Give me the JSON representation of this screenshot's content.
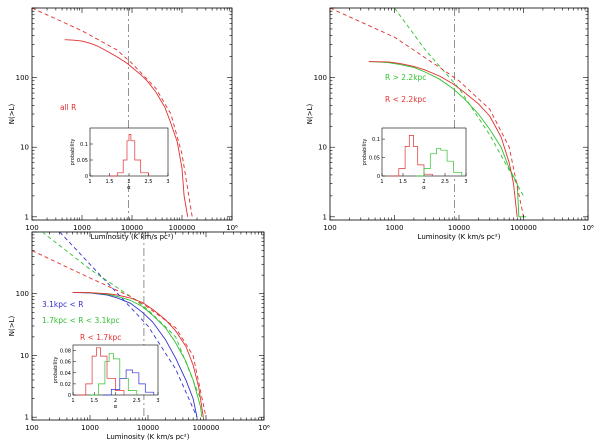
{
  "chart_data": [
    {
      "type": "line",
      "panel": "top-left",
      "xlabel": "Luminosity (K km/s pc²)",
      "ylabel": "N(>L)",
      "xscale": "log",
      "yscale": "log",
      "xlim": [
        100,
        1000000
      ],
      "ylim": [
        0.9,
        1000
      ],
      "xticks": [
        "100",
        "1000",
        "10000",
        "100000",
        "10⁶"
      ],
      "yticks": [
        "1",
        "10",
        "100"
      ],
      "vline": 8500,
      "legend": [
        "all R"
      ],
      "series": [
        {
          "name": "all R",
          "color": "#e03030",
          "style": "solid",
          "x": [
            450,
            700,
            1000,
            1500,
            2000,
            3000,
            5000,
            8000,
            10000,
            15000,
            20000,
            30000,
            45000,
            60000,
            80000,
            100000,
            110000,
            130000
          ],
          "y": [
            350,
            345,
            335,
            310,
            285,
            245,
            200,
            160,
            140,
            110,
            90,
            62,
            38,
            22,
            12,
            5,
            2,
            1
          ]
        },
        {
          "color": "#e03030",
          "style": "dashed",
          "x": [
            100,
            1000,
            5000,
            10000,
            30000,
            60000,
            100000,
            160000
          ],
          "y": [
            1000,
            470,
            250,
            160,
            70,
            30,
            8,
            1
          ]
        }
      ],
      "inset": {
        "xlabel": "α",
        "ylabel": "probability",
        "xlim": [
          1,
          3
        ],
        "ylim": [
          0,
          0.15
        ],
        "xticks": [
          "1",
          "1.5",
          "2",
          "2.5",
          "3"
        ],
        "yticks": [
          "0",
          "0.05",
          "0.1"
        ],
        "series": [
          {
            "color": "#e03030",
            "x": [
              1.5,
              1.7,
              1.85,
              1.95,
              2.0,
              2.05,
              2.15,
              2.3,
              2.5
            ],
            "y": [
              0,
              0.01,
              0.05,
              0.11,
              0.13,
              0.11,
              0.05,
              0.01,
              0
            ]
          }
        ]
      }
    },
    {
      "type": "line",
      "panel": "top-right",
      "xlabel": "Luminosity (K km/s pc²)",
      "ylabel": "N(>L)",
      "xscale": "log",
      "yscale": "log",
      "xlim": [
        100,
        1000000
      ],
      "ylim": [
        0.9,
        1000
      ],
      "xticks": [
        "100",
        "1000",
        "10000",
        "100000",
        "10⁶"
      ],
      "yticks": [
        "1",
        "10",
        "100"
      ],
      "vline": 8500,
      "legend": [
        "R > 2.2kpc",
        "R < 2.2kpc"
      ],
      "series": [
        {
          "name": "R > 2.2kpc",
          "color": "#30c030",
          "style": "solid",
          "x": [
            400,
            800,
            1200,
            2000,
            3000,
            5000,
            8000,
            12000,
            20000,
            30000,
            45000,
            60000,
            80000,
            85000,
            110000
          ],
          "y": [
            170,
            165,
            155,
            140,
            120,
            95,
            70,
            50,
            30,
            18,
            10,
            5,
            3,
            1,
            1
          ]
        },
        {
          "name": "R < 2.2kpc",
          "color": "#e03030",
          "style": "solid",
          "x": [
            400,
            800,
            1200,
            2000,
            3000,
            5000,
            8000,
            12000,
            20000,
            30000,
            45000,
            60000,
            70000,
            80000
          ],
          "y": [
            170,
            168,
            160,
            145,
            128,
            105,
            82,
            62,
            42,
            28,
            14,
            6,
            3,
            1
          ]
        },
        {
          "color": "#30c030",
          "style": "dashed",
          "x": [
            1000,
            3000,
            10000,
            30000,
            100000
          ],
          "y": [
            1000,
            250,
            70,
            15,
            2
          ]
        },
        {
          "color": "#e03030",
          "style": "dashed",
          "x": [
            100,
            1000,
            5000,
            10000,
            30000,
            60000,
            100000
          ],
          "y": [
            1000,
            380,
            140,
            90,
            35,
            10,
            1
          ]
        }
      ],
      "inset": {
        "xlabel": "α",
        "ylabel": "probability",
        "xlim": [
          1,
          3
        ],
        "ylim": [
          0,
          0.13
        ],
        "xticks": [
          "1",
          "1.5",
          "2",
          "2.5",
          "3"
        ],
        "yticks": [
          "0",
          "0.05",
          "0.1"
        ],
        "series": [
          {
            "color": "#e03030",
            "x": [
              1.2,
              1.4,
              1.55,
              1.65,
              1.75,
              1.85,
              2.0,
              2.2
            ],
            "y": [
              0,
              0.02,
              0.08,
              0.11,
              0.08,
              0.03,
              0.005,
              0
            ]
          },
          {
            "color": "#30c030",
            "x": [
              1.8,
              2.0,
              2.15,
              2.3,
              2.4,
              2.55,
              2.7,
              2.9
            ],
            "y": [
              0,
              0.02,
              0.06,
              0.075,
              0.07,
              0.04,
              0.01,
              0
            ]
          }
        ]
      }
    },
    {
      "type": "line",
      "panel": "bottom-left",
      "xlabel": "Luminosity (K km/s pc²)",
      "ylabel": "N(>L)",
      "xscale": "log",
      "yscale": "log",
      "xlim": [
        100,
        1000000
      ],
      "ylim": [
        0.9,
        1000
      ],
      "xticks": [
        "100",
        "1000",
        "10000",
        "100000",
        "10⁶"
      ],
      "yticks": [
        "1",
        "10",
        "100"
      ],
      "vline": 8500,
      "legend": [
        "3.1kpc < R",
        "1.7kpc < R < 3.1kpc",
        "R < 1.7kpc"
      ],
      "series": [
        {
          "name": "3.1kpc < R",
          "color": "#3030d0",
          "style": "solid",
          "x": [
            500,
            1000,
            2000,
            3000,
            5000,
            8000,
            12000,
            20000,
            30000,
            45000,
            60000,
            70000
          ],
          "y": [
            105,
            103,
            95,
            85,
            70,
            50,
            35,
            18,
            9,
            4,
            2,
            1
          ]
        },
        {
          "name": "1.7kpc < R < 3.1kpc",
          "color": "#30c030",
          "style": "solid",
          "x": [
            500,
            1000,
            2000,
            3000,
            5000,
            8000,
            12000,
            20000,
            30000,
            45000,
            60000,
            80000,
            85000
          ],
          "y": [
            105,
            104,
            98,
            90,
            78,
            62,
            45,
            28,
            16,
            8,
            4,
            1.5,
            1
          ]
        },
        {
          "name": "R < 1.7kpc",
          "color": "#e03030",
          "style": "solid",
          "x": [
            500,
            1000,
            2000,
            3000,
            5000,
            8000,
            12000,
            20000,
            30000,
            45000,
            60000,
            75000,
            90000
          ],
          "y": [
            105,
            104,
            100,
            95,
            85,
            72,
            56,
            38,
            25,
            14,
            7,
            3,
            1
          ]
        },
        {
          "color": "#3030d0",
          "style": "dashed",
          "x": [
            300,
            1000,
            3000,
            10000,
            30000,
            70000
          ],
          "y": [
            1000,
            300,
            100,
            30,
            6,
            1
          ]
        },
        {
          "color": "#30c030",
          "style": "dashed",
          "x": [
            150,
            1000,
            5000,
            10000,
            30000,
            80000
          ],
          "y": [
            1000,
            250,
            90,
            55,
            20,
            2
          ]
        },
        {
          "color": "#e03030",
          "style": "dashed",
          "x": [
            100,
            1000,
            5000,
            10000,
            30000,
            60000,
            100000
          ],
          "y": [
            500,
            180,
            90,
            60,
            28,
            10,
            1
          ]
        }
      ],
      "inset": {
        "xlabel": "α",
        "ylabel": "probability",
        "xlim": [
          1,
          3
        ],
        "ylim": [
          0,
          0.09
        ],
        "xticks": [
          "1",
          "1.5",
          "2",
          "2.5",
          "3"
        ],
        "yticks": [
          "0",
          "0.02",
          "0.04",
          "0.06",
          "0.08"
        ],
        "series": [
          {
            "color": "#e03030",
            "x": [
              1.1,
              1.3,
              1.45,
              1.55,
              1.65,
              1.8,
              2.0,
              2.2
            ],
            "y": [
              0,
              0.02,
              0.07,
              0.085,
              0.07,
              0.03,
              0.008,
              0
            ]
          },
          {
            "color": "#30c030",
            "x": [
              1.4,
              1.6,
              1.75,
              1.85,
              1.95,
              2.1,
              2.3,
              2.5
            ],
            "y": [
              0,
              0.02,
              0.06,
              0.075,
              0.065,
              0.03,
              0.008,
              0
            ]
          },
          {
            "color": "#3030d0",
            "x": [
              1.7,
              1.9,
              2.1,
              2.25,
              2.4,
              2.55,
              2.7,
              2.9
            ],
            "y": [
              0,
              0.01,
              0.03,
              0.045,
              0.04,
              0.02,
              0.005,
              0
            ]
          }
        ]
      }
    }
  ]
}
